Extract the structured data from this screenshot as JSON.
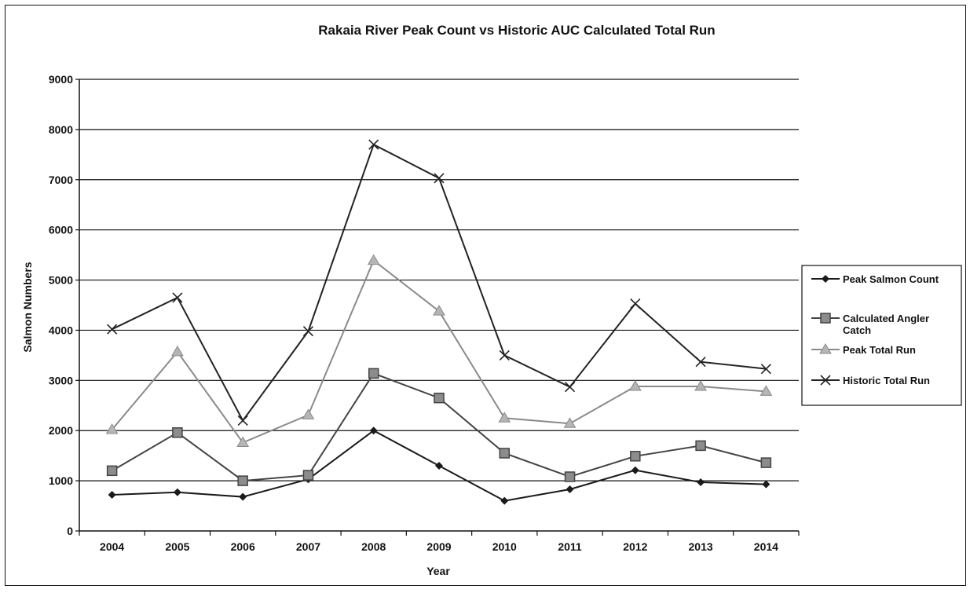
{
  "chart_data": {
    "type": "line",
    "title": "Rakaia River Peak Count vs Historic AUC Calculated Total Run",
    "xlabel": "Year",
    "ylabel": "Salmon Numbers",
    "categories": [
      "2004",
      "2005",
      "2006",
      "2007",
      "2008",
      "2009",
      "2010",
      "2011",
      "2012",
      "2013",
      "2014"
    ],
    "ylim": [
      0,
      9000
    ],
    "yticks": [
      0,
      1000,
      2000,
      3000,
      4000,
      5000,
      6000,
      7000,
      8000,
      9000
    ],
    "grid": true,
    "legend_position": "right",
    "series": [
      {
        "name": "Peak Salmon Count",
        "marker": "diamond",
        "color": "#1a1a1a",
        "values": [
          720,
          770,
          680,
          1030,
          2000,
          1300,
          600,
          830,
          1210,
          970,
          930
        ]
      },
      {
        "name": "Calculated Angler Catch",
        "marker": "square",
        "color": "#444444",
        "values": [
          1200,
          1960,
          1000,
          1110,
          3140,
          2650,
          1550,
          1080,
          1490,
          1700,
          1360
        ]
      },
      {
        "name": "Peak Total Run",
        "marker": "triangle",
        "color": "#8a8a8a",
        "values": [
          2020,
          3570,
          1760,
          2310,
          5390,
          4380,
          2250,
          2140,
          2880,
          2880,
          2780
        ]
      },
      {
        "name": "Historic Total Run",
        "marker": "x",
        "color": "#222222",
        "values": [
          4020,
          4650,
          2200,
          3980,
          7700,
          7030,
          3500,
          2870,
          4530,
          3370,
          3230
        ]
      }
    ]
  }
}
